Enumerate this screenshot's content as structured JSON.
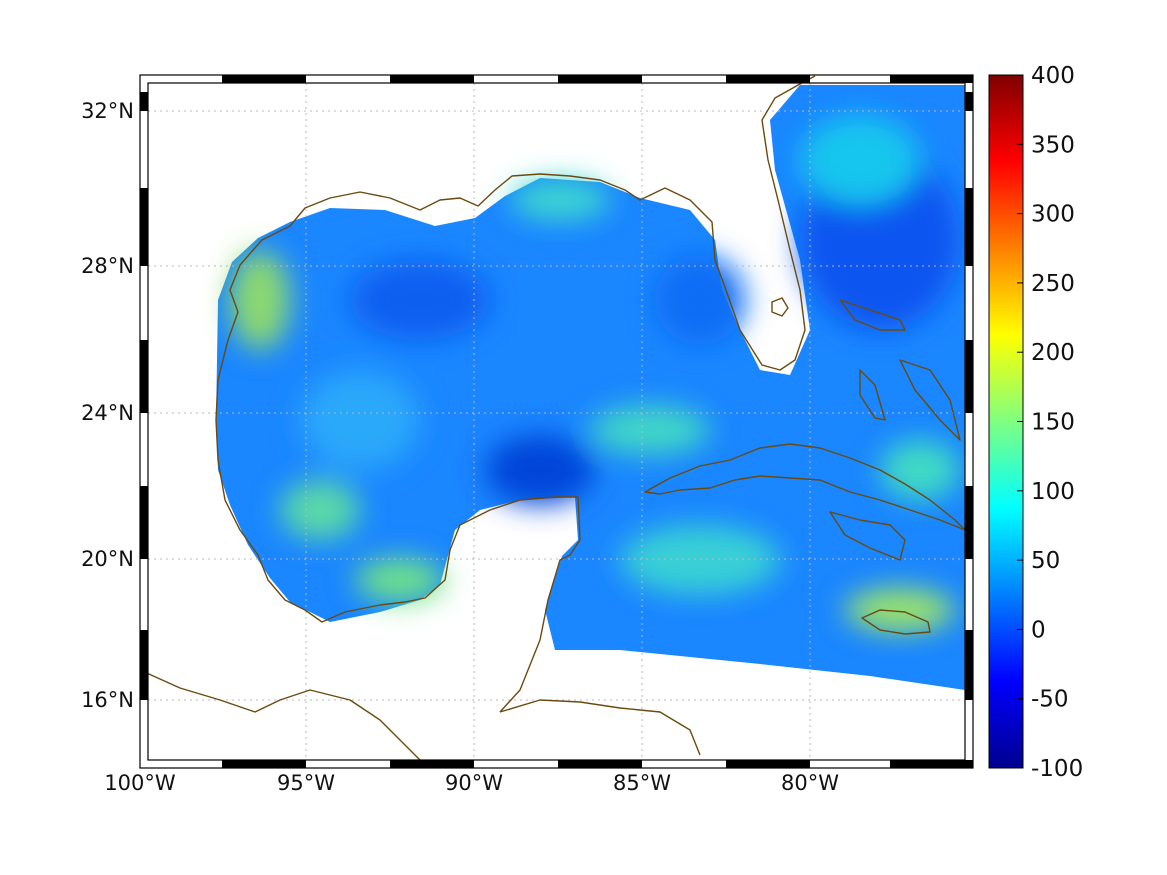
{
  "map": {
    "region": "Gulf of Mexico and Caribbean",
    "lon_range": [
      -100,
      -75
    ],
    "lat_range": [
      14.3,
      33.0
    ],
    "lon_ticks": [
      {
        "value": -100,
        "label": "100°W"
      },
      {
        "value": -95,
        "label": "95°W"
      },
      {
        "value": -90,
        "label": "90°W"
      },
      {
        "value": -85,
        "label": "85°W"
      },
      {
        "value": -80,
        "label": "80°W"
      }
    ],
    "lat_ticks": [
      {
        "value": 32,
        "label": "32°N"
      },
      {
        "value": 28,
        "label": "28°N"
      },
      {
        "value": 24,
        "label": "24°N"
      },
      {
        "value": 20,
        "label": "20°N"
      },
      {
        "value": 16,
        "label": "16°N"
      }
    ],
    "gridlines": true,
    "coastline_color": "#6b4a0e",
    "colormap": "jet"
  },
  "colorbar": {
    "min": -100,
    "max": 400,
    "ticks": [
      {
        "value": 400,
        "label": "400"
      },
      {
        "value": 350,
        "label": "350"
      },
      {
        "value": 300,
        "label": "300"
      },
      {
        "value": 250,
        "label": "250"
      },
      {
        "value": 200,
        "label": "200"
      },
      {
        "value": 150,
        "label": "150"
      },
      {
        "value": 100,
        "label": "100"
      },
      {
        "value": 50,
        "label": "50"
      },
      {
        "value": 0,
        "label": "0"
      },
      {
        "value": -50,
        "label": "-50"
      },
      {
        "value": -100,
        "label": "-100"
      }
    ]
  }
}
